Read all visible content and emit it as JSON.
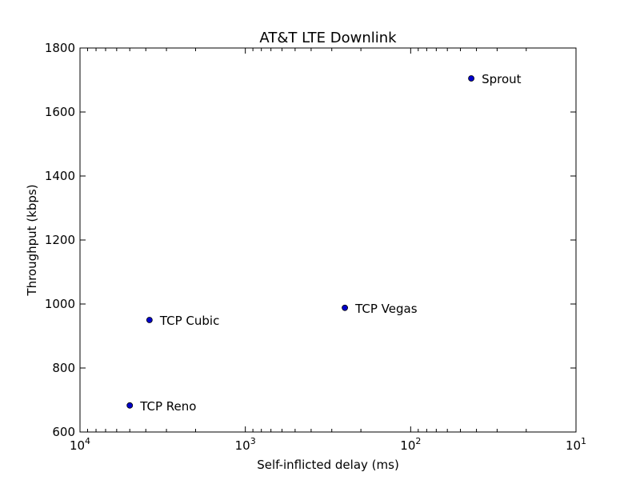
{
  "chart_data": {
    "type": "scatter",
    "title": "AT&T LTE Downlink",
    "xlabel": "Self-inflicted delay (ms)",
    "ylabel": "Throughput (kbps)",
    "x_scale": "log",
    "x_reversed": true,
    "xlim": [
      10000,
      10
    ],
    "ylim": [
      600,
      1800
    ],
    "grid": false,
    "x_ticks": [
      {
        "base": "10",
        "exp": "4",
        "value": 10000
      },
      {
        "base": "10",
        "exp": "3",
        "value": 1000
      },
      {
        "base": "10",
        "exp": "2",
        "value": 100
      },
      {
        "base": "10",
        "exp": "1",
        "value": 10
      }
    ],
    "y_ticks": [
      600,
      800,
      1000,
      1200,
      1400,
      1600,
      1800
    ],
    "marker_color": "#0000cc",
    "points": [
      {
        "label": "Sprout",
        "x": 43,
        "y": 1705
      },
      {
        "label": "TCP Vegas",
        "x": 250,
        "y": 988
      },
      {
        "label": "TCP Cubic",
        "x": 3800,
        "y": 950
      },
      {
        "label": "TCP Reno",
        "x": 5000,
        "y": 683
      }
    ]
  }
}
